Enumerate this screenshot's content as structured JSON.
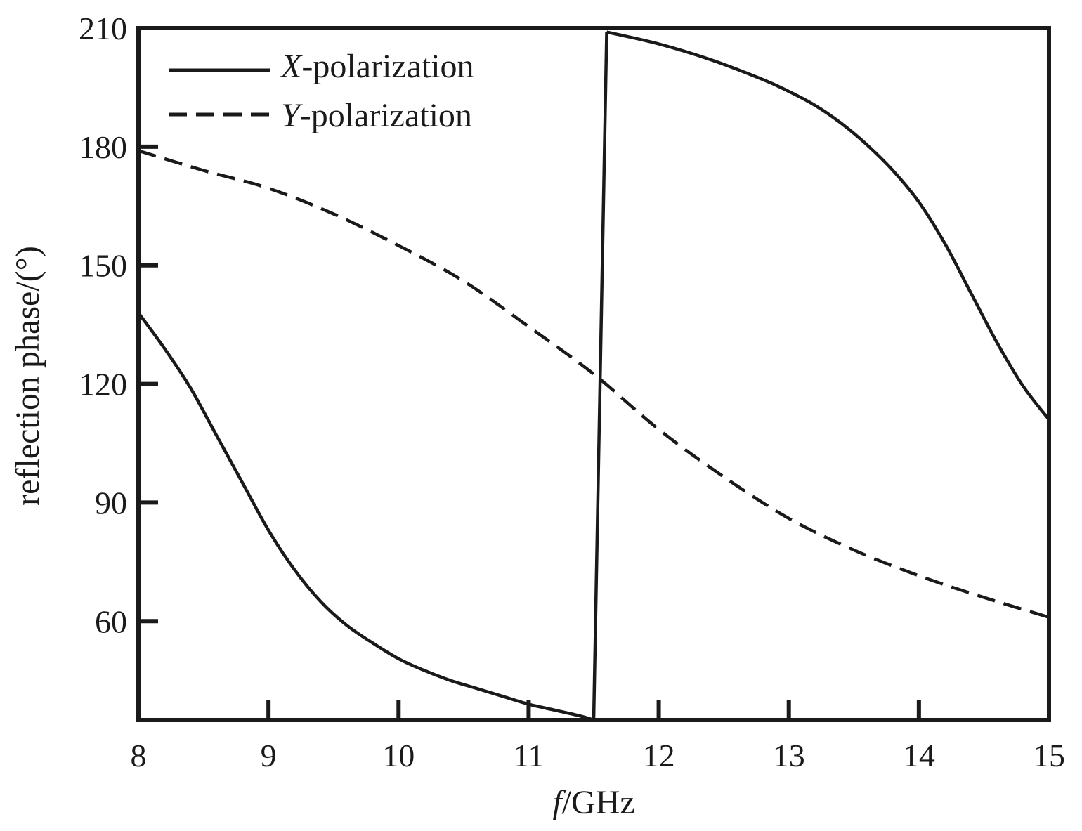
{
  "chart_data": {
    "type": "line",
    "title": "",
    "xlabel_prefix": "f",
    "xlabel_suffix": "/GHz",
    "ylabel": "reflection phase/(°)",
    "xlim": [
      8,
      15
    ],
    "ylim": [
      35,
      210
    ],
    "xticks": [
      8,
      9,
      10,
      11,
      12,
      13,
      14,
      15
    ],
    "yticks": [
      60,
      90,
      120,
      150,
      180,
      210
    ],
    "xtick_labels": [
      "8",
      "9",
      "10",
      "11",
      "12",
      "13",
      "14",
      "15"
    ],
    "ytick_labels": [
      "60",
      "90",
      "120",
      "150",
      "180",
      "210"
    ],
    "grid": false,
    "legend_position": "top-left",
    "series": [
      {
        "legend_prefix": "X",
        "legend_suffix": "-polarization",
        "style": "solid",
        "color": "#1a1a1a",
        "segments": [
          {
            "x": [
              8.0,
              8.2,
              8.4,
              8.6,
              8.8,
              9.0,
              9.2,
              9.4,
              9.6,
              9.8,
              10.0,
              10.2,
              10.4,
              10.6,
              10.8,
              11.0,
              11.2,
              11.4,
              11.5
            ],
            "y": [
              138,
              129,
              119,
              107,
              95,
              83,
              73,
              65,
              59,
              54.5,
              50.5,
              47.5,
              45,
              43,
              41,
              39,
              37.5,
              36,
              35
            ]
          },
          {
            "x": [
              11.5,
              11.6
            ],
            "y": [
              35,
              209
            ]
          },
          {
            "x": [
              11.6,
              12.0,
              12.4,
              12.8,
              13.0,
              13.2,
              13.4,
              13.6,
              13.8,
              14.0,
              14.2,
              14.4,
              14.6,
              14.8,
              15.0
            ],
            "y": [
              209,
              206,
              202,
              197,
              194,
              190.5,
              186,
              180.5,
              174,
              166,
              155.5,
              143,
              130.5,
              119.5,
              111
            ]
          }
        ]
      },
      {
        "legend_prefix": "Y",
        "legend_suffix": "-polarization",
        "style": "dashed",
        "color": "#1a1a1a",
        "segments": [
          {
            "x": [
              8.0,
              8.5,
              9.0,
              9.5,
              10.0,
              10.5,
              11.0,
              11.5,
              12.0,
              12.5,
              13.0,
              13.5,
              14.0,
              14.5,
              15.0
            ],
            "y": [
              179,
              174,
              169.5,
              163,
              155,
              146,
              134.5,
              122.5,
              108.5,
              96.5,
              86,
              78,
              71.5,
              66,
              61
            ]
          }
        ]
      }
    ]
  }
}
